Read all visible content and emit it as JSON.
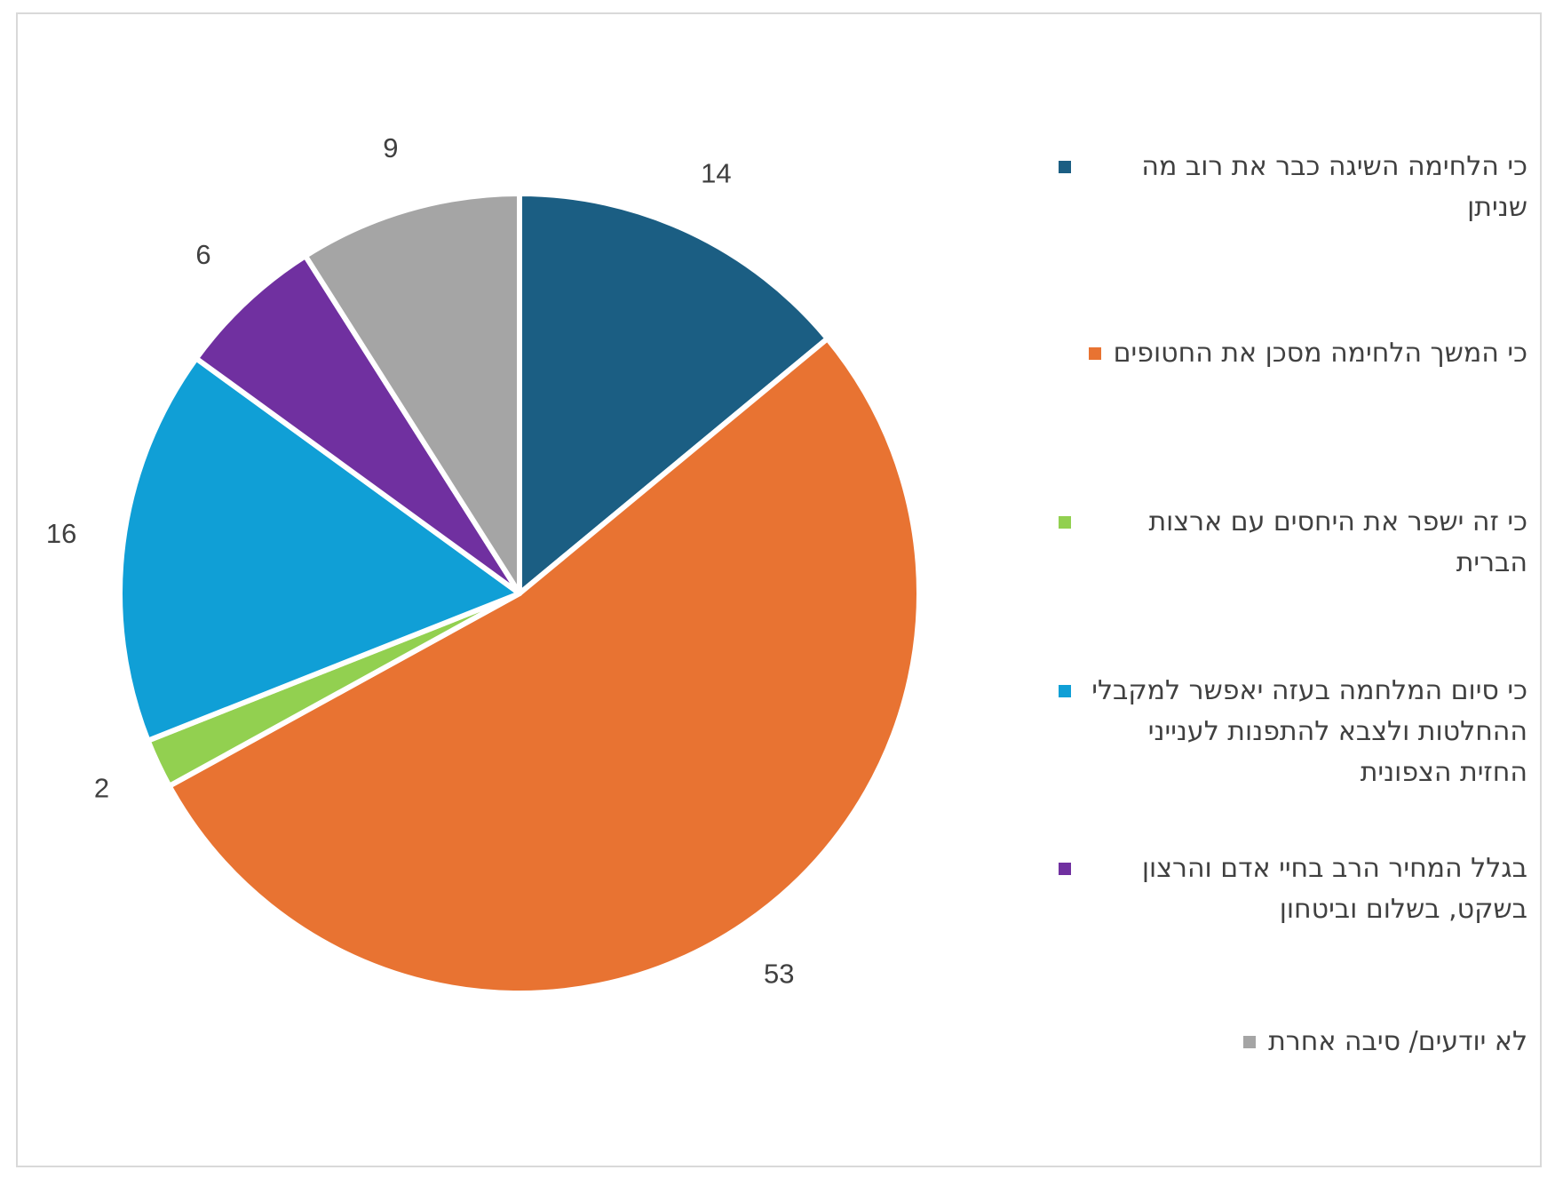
{
  "chart_data": {
    "type": "pie",
    "title": "",
    "slices": [
      {
        "label": "כי הלחימה השיגה כבר את רוב מה שניתן",
        "value": 14,
        "color": "#1b5e83"
      },
      {
        "label": "כי המשך הלחימה מסכן את החטופים",
        "value": 53,
        "color": "#e87332"
      },
      {
        "label": "כי זה ישפר את היחסים עם ארצות הברית",
        "value": 2,
        "color": "#92d050"
      },
      {
        "label": "כי סיום המלחמה בעזה יאפשר למקבלי ההחלטות ולצבא להתפנות לענייני החזית הצפונית",
        "value": 16,
        "color": "#109fd6"
      },
      {
        "label": "בגלל המחיר הרב בחיי אדם והרצון בשקט, בשלום וביטחון",
        "value": 6,
        "color": "#7030a0"
      },
      {
        "label": "לא יודעים/ סיבה אחרת",
        "value": 9,
        "color": "#a5a5a5"
      }
    ],
    "legend_position": "right"
  }
}
